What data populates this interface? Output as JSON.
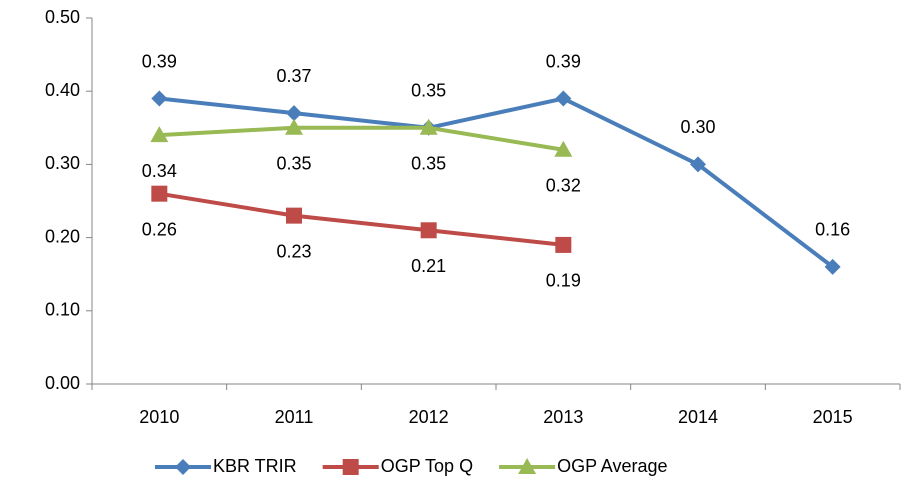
{
  "chart_data": {
    "type": "line",
    "categories": [
      "2010",
      "2011",
      "2012",
      "2013",
      "2014",
      "2015"
    ],
    "series": [
      {
        "name": "KBR TRIR",
        "color": "#4a7ebb",
        "marker": "diamond",
        "label_position": "above",
        "values": [
          0.39,
          0.37,
          0.35,
          0.39,
          0.3,
          0.16
        ],
        "value_labels": [
          "0.39",
          "0.37",
          "0.35",
          "0.39",
          "0.30",
          "0.16"
        ]
      },
      {
        "name": "OGP Top Q",
        "color": "#be4b48",
        "marker": "square",
        "label_position": "below",
        "values": [
          0.26,
          0.23,
          0.21,
          0.19,
          null,
          null
        ],
        "value_labels": [
          "0.26",
          "0.23",
          "0.21",
          "0.19",
          null,
          null
        ]
      },
      {
        "name": "OGP Average",
        "color": "#98b954",
        "marker": "triangle",
        "label_position": "below",
        "values": [
          0.34,
          0.35,
          0.35,
          0.32,
          null,
          null
        ],
        "value_labels": [
          "0.34",
          "0.35",
          "0.35",
          "0.32",
          null,
          null
        ]
      }
    ],
    "ylim": [
      0,
      0.5
    ],
    "yticks": [
      {
        "value": 0,
        "label": "0.00"
      },
      {
        "value": 0.1,
        "label": "0.10"
      },
      {
        "value": 0.2,
        "label": "0.20"
      },
      {
        "value": 0.3,
        "label": "0.30"
      },
      {
        "value": 0.4,
        "label": "0.40"
      },
      {
        "value": 0.5,
        "label": "0.50"
      }
    ],
    "grid": false,
    "legend": "bottom"
  }
}
